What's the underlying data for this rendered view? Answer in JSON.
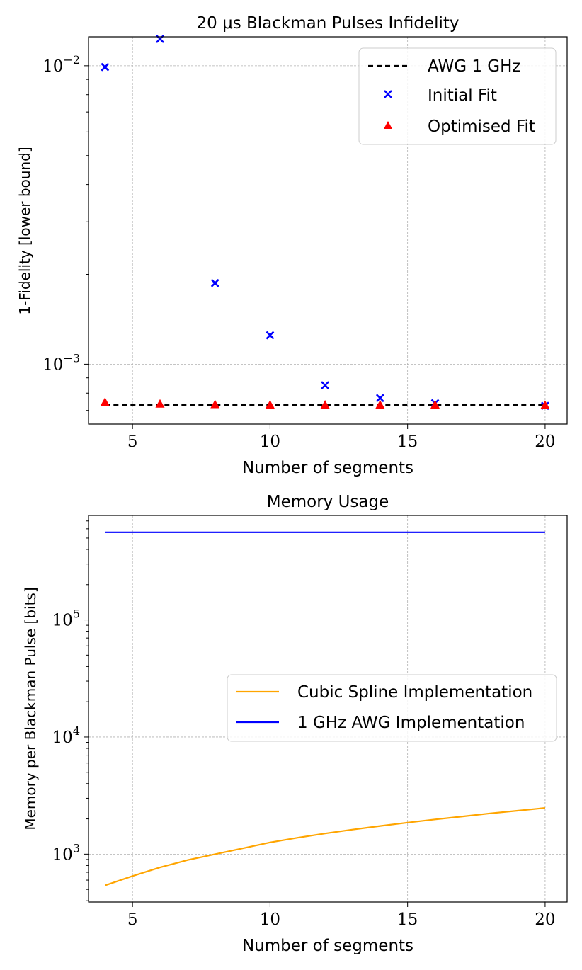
{
  "chart_data": [
    {
      "type": "scatter",
      "title": "20 μs Blackman Pulses Infidelity",
      "xlabel": "Number of segments",
      "ylabel": "1-Fidelity [lower bound]",
      "xlim": [
        3.4,
        20.8
      ],
      "ylim": [
        0.00063,
        0.0125
      ],
      "yscale": "log",
      "grid": true,
      "legend_position": "top-right",
      "xticks": [
        5,
        10,
        15,
        20
      ],
      "xtick_labels": [
        "5",
        "10",
        "15",
        "20"
      ],
      "yticks_major": [
        0.001,
        0.01
      ],
      "ytick_labels": [
        "10−3",
        "10−2"
      ],
      "series": [
        {
          "name": "AWG 1 GHz",
          "kind": "line",
          "style": "dashed",
          "color": "#000000",
          "x": [
            4,
            20
          ],
          "y": [
            0.00073,
            0.00073
          ]
        },
        {
          "name": "Initial Fit",
          "kind": "marker",
          "marker": "x",
          "color": "#0000ff",
          "x": [
            4,
            6,
            8,
            10,
            12,
            14,
            16,
            20
          ],
          "y": [
            0.0099,
            0.0123,
            0.00187,
            0.00125,
            0.00085,
            0.00077,
            0.00074,
            0.000725
          ]
        },
        {
          "name": "Optimised Fit",
          "kind": "marker",
          "marker": "triangle",
          "color": "#ff0000",
          "x": [
            4,
            6,
            8,
            10,
            12,
            14,
            16,
            20
          ],
          "y": [
            0.000745,
            0.000735,
            0.000732,
            0.00073,
            0.00073,
            0.00073,
            0.00073,
            0.000728
          ]
        }
      ]
    },
    {
      "type": "line",
      "title": "Memory Usage",
      "xlabel": "Number of segments",
      "ylabel": "Memory per Blackman Pulse [bits]",
      "xlim": [
        3.4,
        20.8
      ],
      "ylim": [
        390,
        780000
      ],
      "yscale": "log",
      "grid": true,
      "legend_position": "center-right",
      "xticks": [
        5,
        10,
        15,
        20
      ],
      "xtick_labels": [
        "5",
        "10",
        "15",
        "20"
      ],
      "yticks_major": [
        1000,
        10000,
        100000
      ],
      "ytick_labels": [
        "103",
        "104",
        "105"
      ],
      "series": [
        {
          "name": "Cubic Spline Implementation",
          "kind": "line",
          "color": "#ffa500",
          "x": [
            4,
            5,
            6,
            7,
            8,
            9,
            10,
            11,
            12,
            13,
            14,
            15,
            16,
            17,
            18,
            19,
            20
          ],
          "y": [
            540,
            650,
            770,
            890,
            1000,
            1120,
            1260,
            1380,
            1500,
            1620,
            1740,
            1860,
            1980,
            2100,
            2230,
            2350,
            2480
          ]
        },
        {
          "name": "1 GHz AWG Implementation",
          "kind": "line",
          "color": "#0000ff",
          "x": [
            4,
            20
          ],
          "y": [
            560000,
            560000
          ]
        }
      ]
    }
  ]
}
